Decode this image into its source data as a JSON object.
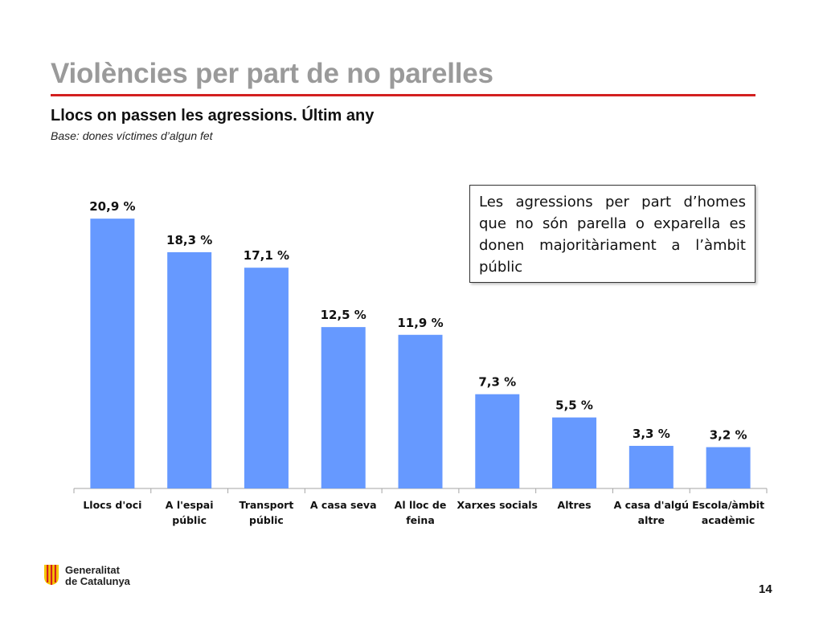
{
  "slide": {
    "title": "Violències per part de no parelles",
    "subtitle": "Llocs on passen les agressions. Últim any",
    "base_note": "Base: dones víctimes d’algun fet",
    "callout": "Les agressions per part d’homes que no són parella o exparella es donen majoritàriament a l’àmbit públic",
    "logo_lines": [
      "Generalitat",
      "de Catalunya"
    ],
    "page_number": "14"
  },
  "colors": {
    "bar": "#6699ff",
    "title": "#9a9a9a",
    "title_rule": "#d32020",
    "logo_red": "#d32020",
    "logo_yellow": "#f5c400"
  },
  "chart_data": {
    "type": "bar",
    "title": "",
    "xlabel": "",
    "ylabel": "",
    "categories": [
      [
        "Llocs d'oci"
      ],
      [
        "A l'espai",
        "públic"
      ],
      [
        "Transport",
        "públic"
      ],
      [
        "A casa seva"
      ],
      [
        "Al lloc de",
        "feina"
      ],
      [
        "Xarxes socials"
      ],
      [
        "Altres"
      ],
      [
        "A casa d'algú",
        "altre"
      ],
      [
        "Escola/àmbit",
        "acadèmic"
      ]
    ],
    "values": [
      20.9,
      18.3,
      17.1,
      12.5,
      11.9,
      7.3,
      5.5,
      3.3,
      3.2
    ],
    "value_labels": [
      "20,9 %",
      "18,3 %",
      "17,1 %",
      "12,5 %",
      "11,9 %",
      "7,3 %",
      "5,5 %",
      "3,3 %",
      "3,2 %"
    ],
    "ylim": [
      0,
      25
    ],
    "grid": false,
    "legend": "none"
  }
}
